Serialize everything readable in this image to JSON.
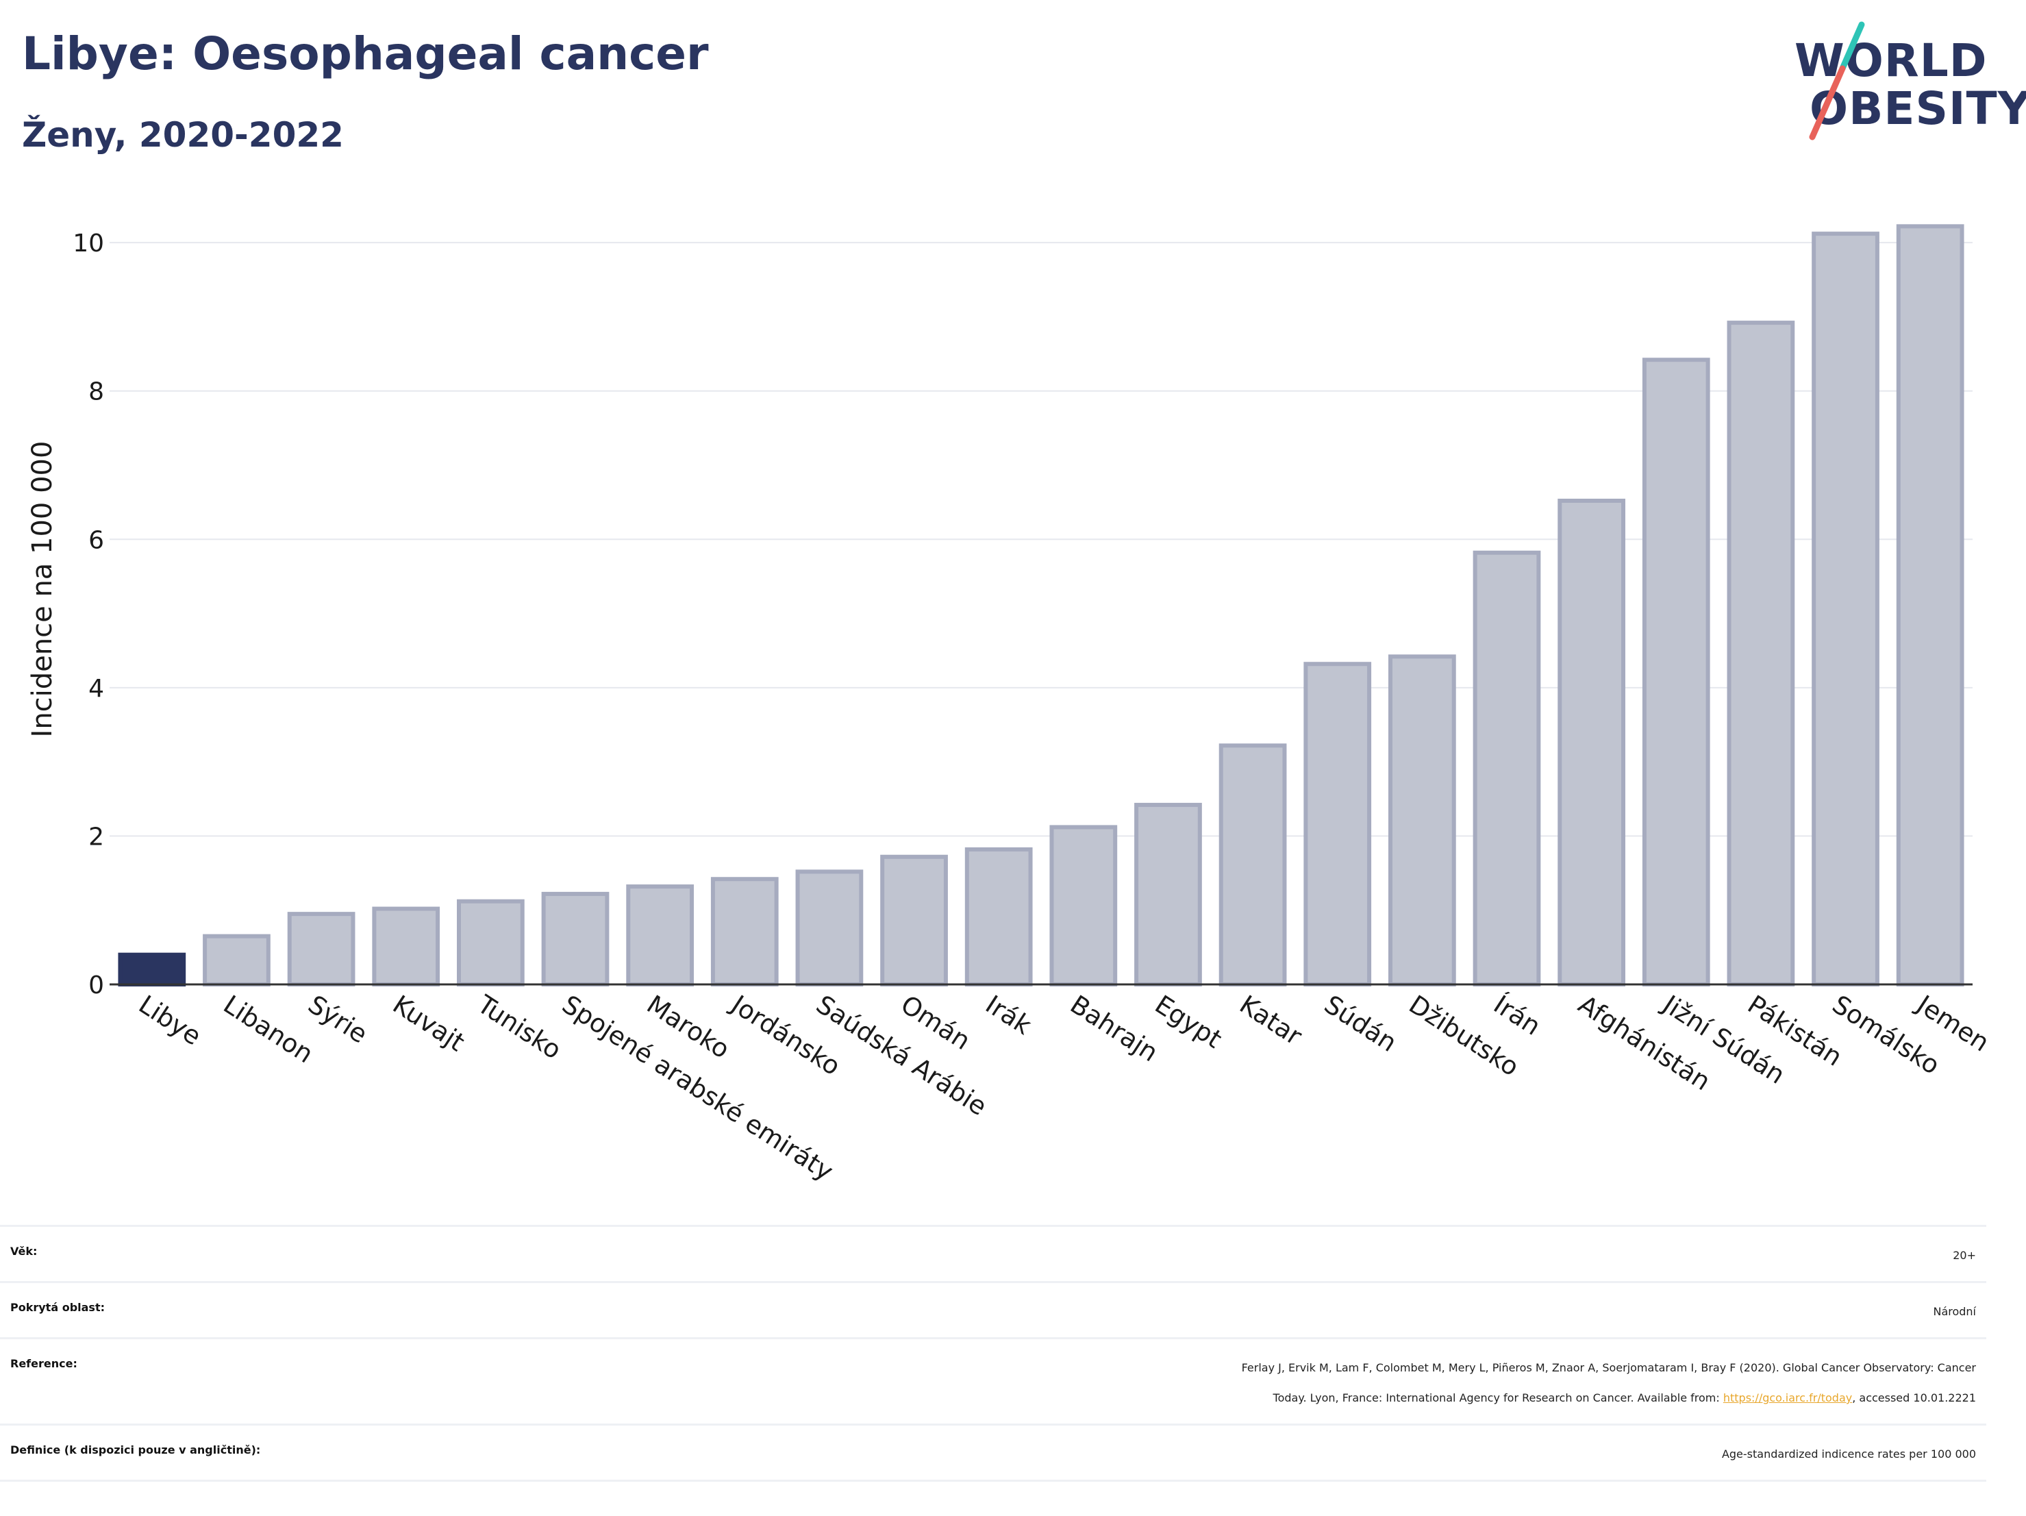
{
  "header": {
    "title": "Libye: Oesophageal cancer",
    "subtitle": "Ženy, 2020-2022"
  },
  "logo": {
    "line1": "WORLD",
    "line2": "OBESITY",
    "accent_colors": [
      "#2ec4b6",
      "#e8625a"
    ]
  },
  "chart_data": {
    "type": "bar",
    "title": "Libye: Oesophageal cancer",
    "subtitle": "Ženy, 2020-2022",
    "ylabel": "Incidence na 100 000",
    "xlabel": "",
    "ylim": [
      0,
      10.5
    ],
    "yticks": [
      0,
      2,
      4,
      6,
      8,
      10
    ],
    "grid": true,
    "highlight": "Libye",
    "colors": {
      "highlight": "#2a3560",
      "bar_fill": "#c0c4d0",
      "bar_stroke": "#a6abbf"
    },
    "categories": [
      "Libye",
      "Libanon",
      "Sýrie",
      "Kuvajt",
      "Tunisko",
      "Spojené arabské emiráty",
      "Maroko",
      "Jordánsko",
      "Saúdská Arábie",
      "Omán",
      "Irák",
      "Bahrajn",
      "Egypt",
      "Katar",
      "Súdán",
      "Džibutsko",
      "Írán",
      "Afghánistán",
      "Jižní Súdán",
      "Pákistán",
      "Somálsko",
      "Jemen"
    ],
    "values": [
      0.4,
      0.65,
      0.95,
      1.02,
      1.12,
      1.22,
      1.32,
      1.42,
      1.52,
      1.72,
      1.82,
      2.12,
      2.42,
      3.22,
      4.32,
      4.42,
      5.82,
      6.52,
      8.42,
      8.92,
      10.12,
      10.22
    ]
  },
  "info": {
    "age_label": "Věk:",
    "age_value": "20+",
    "coverage_label": "Pokrytá oblast:",
    "coverage_value": "Národní",
    "reference_label": "Reference:",
    "reference_line1": "Ferlay J, Ervik M, Lam F, Colombet M, Mery L, Piñeros M, Znaor A, Soerjomataram I, Bray F (2020). Global Cancer Observatory: Cancer",
    "reference_line2_pre": "Today. Lyon, France: International Agency for Research on Cancer. Available from: ",
    "reference_link": "https://gco.iarc.fr/today",
    "reference_line2_post": ", accessed 10.01.2221",
    "definition_label": "Definice (k dispozici pouze v angličtině):",
    "definition_value": "Age-standardized indicence rates per 100 000"
  }
}
